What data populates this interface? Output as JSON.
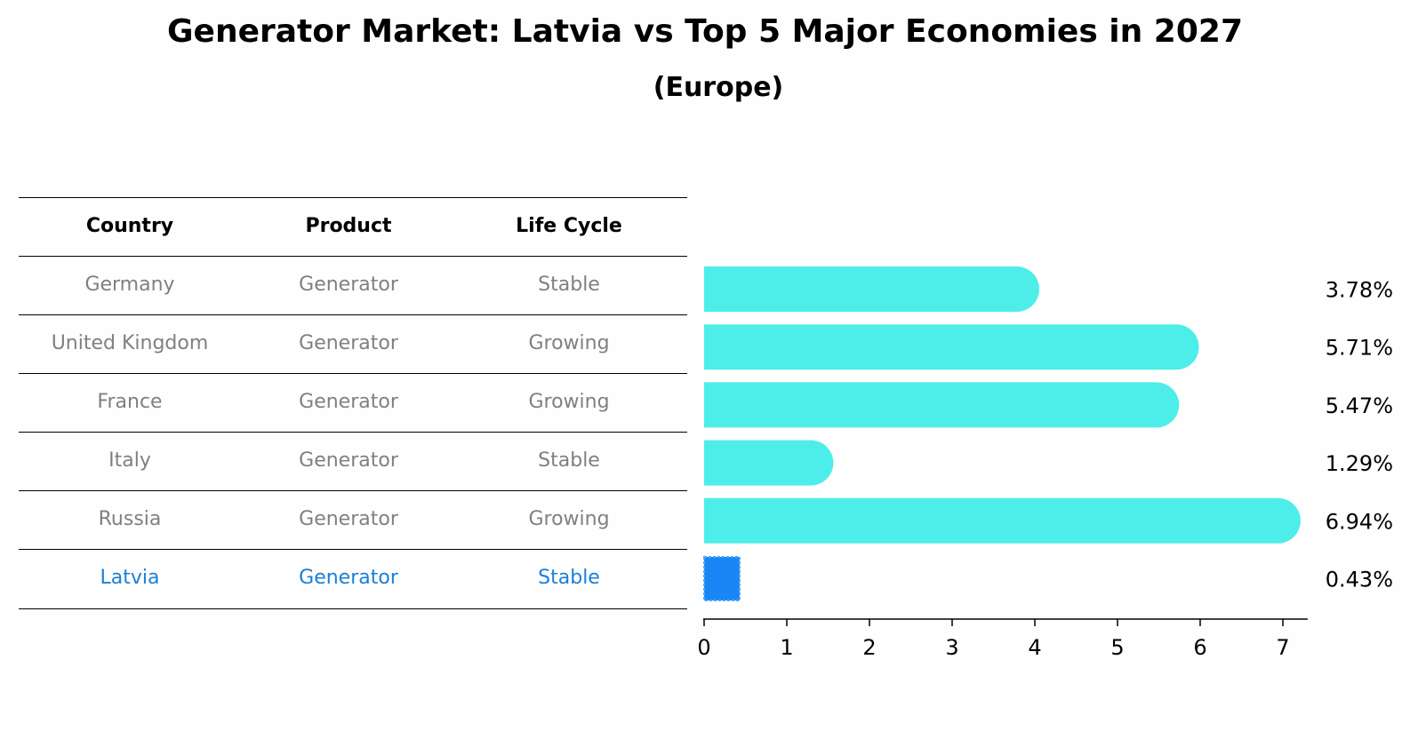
{
  "title": "Generator Market: Latvia vs Top 5 Major Economies in 2027",
  "subtitle": "(Europe)",
  "table": {
    "headers": [
      "Country",
      "Product",
      "Life Cycle"
    ],
    "rows": [
      {
        "country": "Germany",
        "product": "Generator",
        "life_cycle": "Stable"
      },
      {
        "country": "United Kingdom",
        "product": "Generator",
        "life_cycle": "Growing"
      },
      {
        "country": "France",
        "product": "Generator",
        "life_cycle": "Growing"
      },
      {
        "country": "Italy",
        "product": "Generator",
        "life_cycle": "Stable"
      },
      {
        "country": "Russia",
        "product": "Generator",
        "life_cycle": "Growing"
      },
      {
        "country": "Latvia",
        "product": "Generator",
        "life_cycle": "Stable"
      }
    ],
    "highlight_row": 5,
    "text_color": "#808080",
    "highlight_color": "#1a80d6"
  },
  "chart_data": {
    "type": "bar",
    "orientation": "horizontal",
    "categories": [
      "Germany",
      "United Kingdom",
      "France",
      "Italy",
      "Russia",
      "Latvia"
    ],
    "values": [
      3.78,
      5.71,
      5.47,
      1.29,
      6.94,
      0.43
    ],
    "value_labels": [
      "3.78%",
      "5.71%",
      "5.47%",
      "1.29%",
      "6.94%",
      "0.43%"
    ],
    "xlim": [
      0,
      7.3
    ],
    "xticks": [
      0,
      1,
      2,
      3,
      4,
      5,
      6,
      7
    ],
    "bar_color": "#4deee9",
    "highlight_color": "#1a85f5",
    "highlight_index": 5,
    "grid": false
  }
}
